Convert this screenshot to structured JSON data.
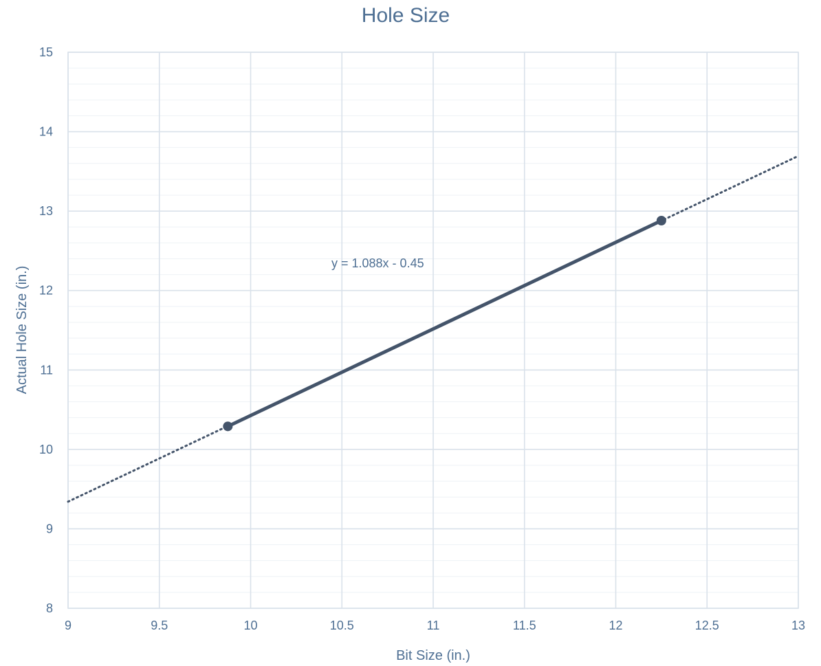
{
  "chart_data": {
    "type": "scatter",
    "title": "Hole Size",
    "xlabel": "Bit Size (in.)",
    "ylabel": "Actual Hole Size (in.)",
    "xlim": [
      9,
      13
    ],
    "ylim": [
      8,
      15
    ],
    "x_major_step": 0.5,
    "y_major_step": 1,
    "y_minor_step": 0.2,
    "x_ticks": [
      "9",
      "9.5",
      "10",
      "10.5",
      "11",
      "11.5",
      "12",
      "12.5",
      "13"
    ],
    "y_ticks": [
      "8",
      "9",
      "10",
      "11",
      "12",
      "13",
      "14",
      "15"
    ],
    "grid": true,
    "series": [
      {
        "points": [
          {
            "x": 9.875,
            "y": 10.29
          },
          {
            "x": 12.25,
            "y": 12.88
          }
        ],
        "connect": true,
        "markers": true,
        "color": "#44546a"
      }
    ],
    "trendline": {
      "type": "linear",
      "slope": 1.088,
      "intercept": -0.45,
      "style": "dotted",
      "color": "#44546a",
      "x_range": [
        9,
        13
      ],
      "equation_label": "y = 1.088x - 0.45"
    }
  }
}
